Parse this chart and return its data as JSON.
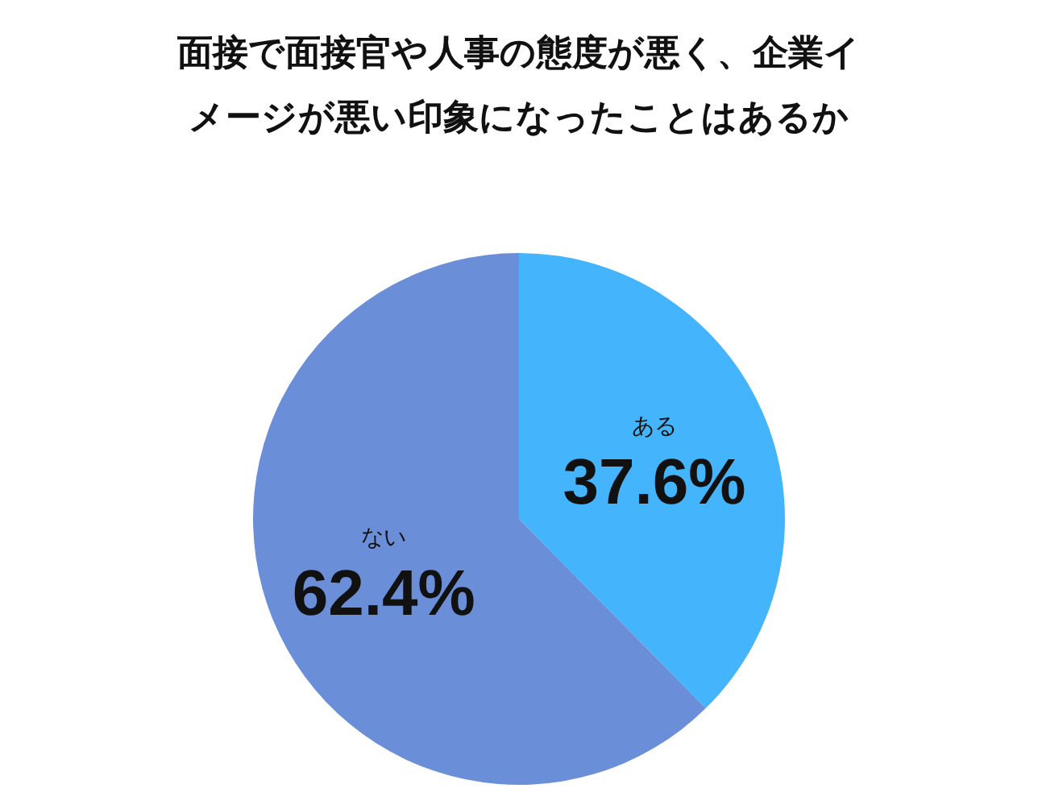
{
  "chart_data": {
    "type": "pie",
    "title": "面接で面接官や人事の態度が悪く、企業イメージが悪い印象になったことはあるか",
    "categories": [
      "ある",
      "ない"
    ],
    "values": [
      37.6,
      62.4
    ],
    "colors": [
      "#44b4fc",
      "#6a8fd8"
    ],
    "value_labels": [
      "37.6%",
      "62.4%"
    ],
    "legend": false
  }
}
